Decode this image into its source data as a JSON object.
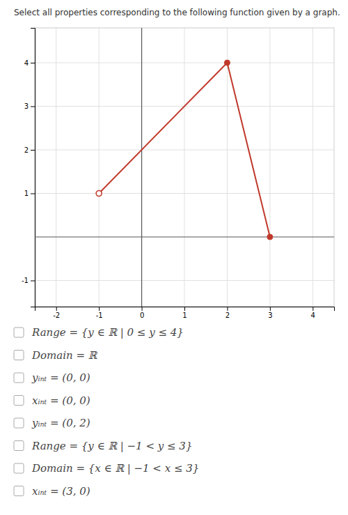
{
  "chart_data": {
    "type": "line",
    "title": "Select all properties corresponding to the following function given by a graph.",
    "xlim": [
      -2.5,
      4.5
    ],
    "ylim": [
      -1.6,
      4.8
    ],
    "xticks": [
      -2,
      -1,
      0,
      1,
      2,
      3,
      4
    ],
    "yticks": [
      -1,
      1,
      2,
      3,
      4
    ],
    "grid": true,
    "series": [
      {
        "type": "line",
        "color": "#c0392b",
        "x": [
          -1,
          2
        ],
        "values": [
          1,
          4
        ]
      },
      {
        "type": "line",
        "color": "#c0392b",
        "x": [
          2,
          3
        ],
        "values": [
          4,
          0
        ]
      },
      {
        "type": "scatter",
        "marker": "circle-open",
        "color": "#c0392b",
        "x": [
          -1
        ],
        "values": [
          1
        ]
      },
      {
        "type": "scatter",
        "marker": "circle",
        "color": "#c0392b",
        "x": [
          2,
          3
        ],
        "values": [
          4,
          0
        ]
      }
    ],
    "annotations": [
      "Range = {y ∈ ℝ | 0 ≤ y ≤ 4}",
      "Domain = ℝ",
      "yᵢₙₜ = (0, 0)",
      "xᵢₙₜ = (0, 0)",
      "yᵢₙₜ = (0, 2)",
      "Range = {y ∈ ℝ | −1 < y ≤ 3}",
      "Domain = {x ∈ ℝ | −1 < x ≤ 3}",
      "xᵢₙₜ = (3, 0)"
    ]
  }
}
